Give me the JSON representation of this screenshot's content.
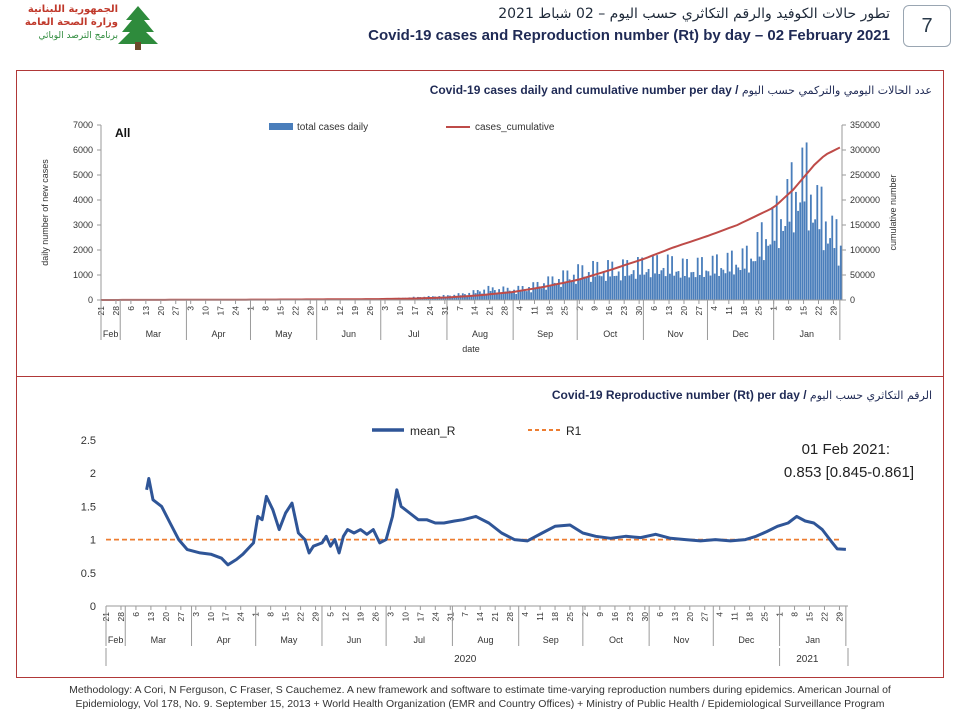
{
  "header": {
    "logo_lines": [
      "الجمهورية اللبنانية",
      "وزارة الصحة العامة",
      "برنامج الترصد الوبائي"
    ],
    "title_ar": "تطور حالات الكوفيد والرقم التكاثري حسب اليوم – 02 شباط 2021",
    "title_en": "Covid-19 cases and Reproduction number (Rt) by day – 02 February 2021",
    "page_number": "7"
  },
  "colors": {
    "bar": "#4a7ebb",
    "cumulative_line": "#be4b48",
    "rt_line": "#2f5597",
    "r1_line": "#ed7d31",
    "frame": "#b03838"
  },
  "footer": {
    "line1": "Methodology: A Cori, N Ferguson, C Fraser, S Cauchemez. A new framework and software to estimate time-varying reproduction numbers during epidemics. American Journal of",
    "line2": "Epidemiology, Vol 178, No. 9. September 15, 2013 + World Health Organization (EMR and Country Offices) + Ministry of Public Health / Epidemiological Surveillance Program"
  },
  "chart_data": [
    {
      "type": "bar",
      "title": "Covid-19 cases daily and cumulative number per day",
      "title_ar": "عدد الحالات اليومي والتركمي حسب اليوم",
      "annotation": "All",
      "xlabel": "date",
      "ylabel": "daily number of new cases",
      "y2label": "cumulative number",
      "ylim": [
        0,
        7000
      ],
      "yticks": [
        0,
        1000,
        2000,
        3000,
        4000,
        5000,
        6000,
        7000
      ],
      "y2lim": [
        0,
        350000
      ],
      "y2ticks": [
        0,
        50000,
        100000,
        150000,
        200000,
        250000,
        300000,
        350000
      ],
      "x_start": "2020-02-21",
      "x_end": "2021-02-01",
      "x_tick_labels": [
        "21",
        "28",
        "6",
        "13",
        "20",
        "27",
        "3",
        "10",
        "17",
        "24",
        "1",
        "8",
        "15",
        "22",
        "29",
        "5",
        "12",
        "19",
        "26",
        "3",
        "10",
        "17",
        "24",
        "31",
        "7",
        "14",
        "21",
        "28",
        "4",
        "11",
        "18",
        "25",
        "2",
        "9",
        "16",
        "23",
        "30",
        "6",
        "13",
        "20",
        "27",
        "4",
        "11",
        "18",
        "25",
        "1",
        "8",
        "15",
        "22",
        "29"
      ],
      "months": [
        "Feb",
        "Mar",
        "Apr",
        "May",
        "Jun",
        "Jul",
        "Aug",
        "Sep",
        "Oct",
        "Nov",
        "Dec",
        "Jan"
      ],
      "legend": [
        "total cases daily",
        "cases_cumulative"
      ],
      "legend_position": "top",
      "grid": false,
      "series": [
        {
          "name": "total cases daily",
          "kind": "bar",
          "points": [
            [
              "2020-02-21",
              1
            ],
            [
              "2020-03-15",
              15
            ],
            [
              "2020-04-01",
              30
            ],
            [
              "2020-04-20",
              8
            ],
            [
              "2020-05-10",
              30
            ],
            [
              "2020-06-01",
              15
            ],
            [
              "2020-06-25",
              20
            ],
            [
              "2020-07-05",
              60
            ],
            [
              "2020-07-15",
              120
            ],
            [
              "2020-07-25",
              160
            ],
            [
              "2020-08-01",
              200
            ],
            [
              "2020-08-10",
              300
            ],
            [
              "2020-08-20",
              520
            ],
            [
              "2020-09-01",
              480
            ],
            [
              "2020-09-10",
              650
            ],
            [
              "2020-09-20",
              950
            ],
            [
              "2020-10-01",
              1300
            ],
            [
              "2020-10-10",
              1450
            ],
            [
              "2020-10-20",
              1450
            ],
            [
              "2020-11-01",
              1600
            ],
            [
              "2020-11-10",
              1700
            ],
            [
              "2020-11-20",
              1500
            ],
            [
              "2020-12-01",
              1600
            ],
            [
              "2020-12-10",
              1750
            ],
            [
              "2020-12-20",
              2000
            ],
            [
              "2020-12-28",
              3100
            ],
            [
              "2021-01-05",
              4200
            ],
            [
              "2021-01-10",
              5200
            ],
            [
              "2021-01-15",
              6000
            ],
            [
              "2021-01-20",
              4600
            ],
            [
              "2021-01-25",
              3800
            ],
            [
              "2021-02-01",
              2600
            ]
          ]
        },
        {
          "name": "cases_cumulative",
          "kind": "line",
          "axis": "right",
          "points": [
            [
              "2020-02-21",
              0
            ],
            [
              "2020-05-01",
              700
            ],
            [
              "2020-06-01",
              1200
            ],
            [
              "2020-07-01",
              1900
            ],
            [
              "2020-07-15",
              2900
            ],
            [
              "2020-08-01",
              5000
            ],
            [
              "2020-08-15",
              9000
            ],
            [
              "2020-09-01",
              16000
            ],
            [
              "2020-09-15",
              26000
            ],
            [
              "2020-10-01",
              40000
            ],
            [
              "2020-10-15",
              58000
            ],
            [
              "2020-11-01",
              82000
            ],
            [
              "2020-11-15",
              105000
            ],
            [
              "2020-12-01",
              128000
            ],
            [
              "2020-12-15",
              150000
            ],
            [
              "2021-01-01",
              185000
            ],
            [
              "2021-01-10",
              220000
            ],
            [
              "2021-01-15",
              245000
            ],
            [
              "2021-01-20",
              270000
            ],
            [
              "2021-01-25",
              290000
            ],
            [
              "2021-02-01",
              305000
            ]
          ]
        }
      ]
    },
    {
      "type": "line",
      "title": "Covid-19 Reproductive number (Rt) per day",
      "title_ar": "الرقم التكاثري حسب اليوم",
      "ylim": [
        0,
        2.5
      ],
      "yticks": [
        0,
        0.5,
        1,
        1.5,
        2,
        2.5
      ],
      "x_start": "2020-02-21",
      "x_end": "2021-02-01",
      "x_tick_labels": [
        "21",
        "28",
        "6",
        "13",
        "20",
        "27",
        "3",
        "10",
        "17",
        "24",
        "1",
        "8",
        "15",
        "22",
        "29",
        "5",
        "12",
        "19",
        "26",
        "3",
        "10",
        "17",
        "24",
        "31",
        "7",
        "14",
        "21",
        "28",
        "4",
        "11",
        "18",
        "25",
        "2",
        "9",
        "16",
        "23",
        "30",
        "6",
        "13",
        "20",
        "27",
        "4",
        "11",
        "18",
        "25",
        "1",
        "8",
        "15",
        "22",
        "29"
      ],
      "months": [
        "Feb",
        "Mar",
        "Apr",
        "May",
        "Jun",
        "Jul",
        "Aug",
        "Sep",
        "Oct",
        "Nov",
        "Dec",
        "Jan"
      ],
      "years": [
        "2020",
        "2021"
      ],
      "legend": [
        "mean_R",
        "R1"
      ],
      "legend_position": "top",
      "annotation_lines": [
        "01 Feb 2021:",
        "0.853 [0.845-0.861]"
      ],
      "grid": false,
      "series": [
        {
          "name": "mean_R",
          "points": [
            [
              "2020-03-11",
              1.75
            ],
            [
              "2020-03-12",
              1.92
            ],
            [
              "2020-03-14",
              1.6
            ],
            [
              "2020-03-18",
              1.5
            ],
            [
              "2020-03-22",
              1.25
            ],
            [
              "2020-03-26",
              1.0
            ],
            [
              "2020-03-30",
              0.85
            ],
            [
              "2020-04-05",
              0.8
            ],
            [
              "2020-04-10",
              0.78
            ],
            [
              "2020-04-15",
              0.72
            ],
            [
              "2020-04-18",
              0.62
            ],
            [
              "2020-04-22",
              0.7
            ],
            [
              "2020-04-25",
              0.78
            ],
            [
              "2020-04-30",
              0.95
            ],
            [
              "2020-05-02",
              1.35
            ],
            [
              "2020-05-04",
              1.3
            ],
            [
              "2020-05-06",
              1.65
            ],
            [
              "2020-05-09",
              1.45
            ],
            [
              "2020-05-12",
              1.15
            ],
            [
              "2020-05-15",
              1.4
            ],
            [
              "2020-05-18",
              1.55
            ],
            [
              "2020-05-21",
              1.1
            ],
            [
              "2020-05-24",
              1.0
            ],
            [
              "2020-05-26",
              0.8
            ],
            [
              "2020-05-28",
              0.9
            ],
            [
              "2020-06-01",
              0.95
            ],
            [
              "2020-06-03",
              1.05
            ],
            [
              "2020-06-05",
              0.9
            ],
            [
              "2020-06-07",
              1.0
            ],
            [
              "2020-06-09",
              0.8
            ],
            [
              "2020-06-11",
              1.05
            ],
            [
              "2020-06-13",
              1.15
            ],
            [
              "2020-06-16",
              1.1
            ],
            [
              "2020-06-19",
              1.15
            ],
            [
              "2020-06-22",
              1.08
            ],
            [
              "2020-06-25",
              1.15
            ],
            [
              "2020-06-28",
              0.95
            ],
            [
              "2020-07-01",
              1.0
            ],
            [
              "2020-07-04",
              1.35
            ],
            [
              "2020-07-06",
              1.75
            ],
            [
              "2020-07-08",
              1.5
            ],
            [
              "2020-07-12",
              1.4
            ],
            [
              "2020-07-16",
              1.3
            ],
            [
              "2020-07-20",
              1.3
            ],
            [
              "2020-07-24",
              1.25
            ],
            [
              "2020-07-28",
              1.25
            ],
            [
              "2020-08-02",
              1.28
            ],
            [
              "2020-08-06",
              1.3
            ],
            [
              "2020-08-12",
              1.35
            ],
            [
              "2020-08-18",
              1.25
            ],
            [
              "2020-08-24",
              1.1
            ],
            [
              "2020-08-30",
              1.0
            ],
            [
              "2020-09-05",
              0.98
            ],
            [
              "2020-09-12",
              1.1
            ],
            [
              "2020-09-18",
              1.2
            ],
            [
              "2020-09-25",
              1.22
            ],
            [
              "2020-10-01",
              1.1
            ],
            [
              "2020-10-07",
              1.05
            ],
            [
              "2020-10-14",
              1.02
            ],
            [
              "2020-10-21",
              1.05
            ],
            [
              "2020-10-28",
              1.03
            ],
            [
              "2020-11-04",
              1.08
            ],
            [
              "2020-11-11",
              1.02
            ],
            [
              "2020-11-18",
              1.0
            ],
            [
              "2020-11-25",
              0.98
            ],
            [
              "2020-12-02",
              1.0
            ],
            [
              "2020-12-09",
              0.98
            ],
            [
              "2020-12-16",
              1.0
            ],
            [
              "2020-12-21",
              1.05
            ],
            [
              "2020-12-26",
              1.12
            ],
            [
              "2020-12-31",
              1.2
            ],
            [
              "2021-01-05",
              1.25
            ],
            [
              "2021-01-09",
              1.35
            ],
            [
              "2021-01-13",
              1.28
            ],
            [
              "2021-01-17",
              1.25
            ],
            [
              "2021-01-21",
              1.15
            ],
            [
              "2021-01-25",
              0.98
            ],
            [
              "2021-01-28",
              0.86
            ],
            [
              "2021-02-01",
              0.853
            ]
          ]
        },
        {
          "name": "R1",
          "value": 1
        }
      ]
    }
  ]
}
